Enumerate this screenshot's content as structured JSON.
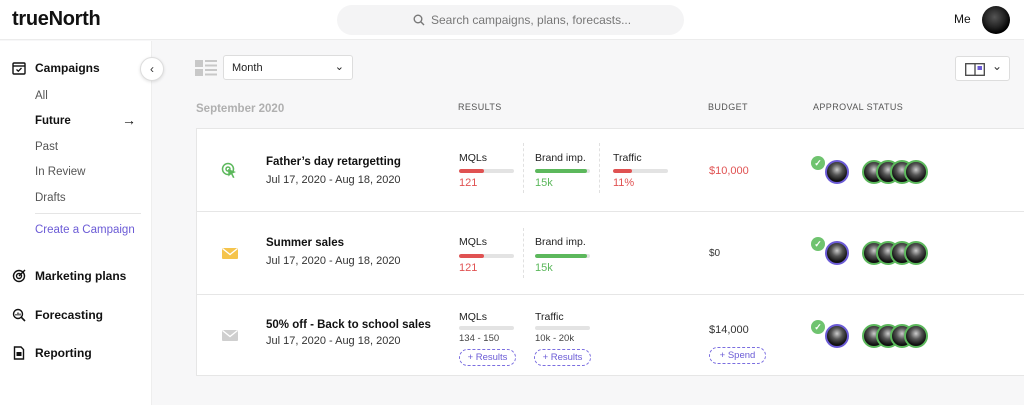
{
  "app": {
    "logo": "trueNorth",
    "user_label": "Me"
  },
  "search": {
    "placeholder": "Search campaigns, plans, forecasts..."
  },
  "sidebar": {
    "campaigns": "Campaigns",
    "sub_items": [
      "All",
      "Future",
      "Past",
      "In Review",
      "Drafts"
    ],
    "active_item": "Future",
    "create_link": "Create a Campaign",
    "marketing_plans": "Marketing plans",
    "forecasting": "Forecasting",
    "reporting": "Reporting"
  },
  "toolbar": {
    "period": "Month"
  },
  "table_headers": {
    "month": "September 2020",
    "results": "RESULTS",
    "budget": "BUDGET",
    "approval": "APPROVAL STATUS"
  },
  "colors": {
    "accent": "#6b5bd6",
    "red": "#e05252",
    "green": "#5cb85c",
    "muted": "#b0b0b0"
  },
  "campaigns": [
    {
      "icon": "cursor-click-icon",
      "name": "Father’s day retargetting",
      "dates": "Jul 17, 2020 - Aug 18, 2020",
      "metrics": [
        {
          "label": "MQLs",
          "value": "121",
          "fill": 0.45,
          "status": "red"
        },
        {
          "label": "Brand imp.",
          "value": "15k",
          "fill": 0.95,
          "status": "green"
        },
        {
          "label": "Traffic",
          "value": "11%",
          "fill": 0.35,
          "status": "red"
        }
      ],
      "budget": "$10,000",
      "budget_status": "red"
    },
    {
      "icon": "envelope-icon",
      "name": "Summer sales",
      "dates": "Jul 17, 2020 - Aug 18, 2020",
      "metrics": [
        {
          "label": "MQLs",
          "value": "121",
          "fill": 0.45,
          "status": "red"
        },
        {
          "label": "Brand imp.",
          "value": "15k",
          "fill": 0.95,
          "status": "green"
        }
      ],
      "budget": "$0",
      "budget_status": "neutral"
    },
    {
      "icon": "envelope-icon",
      "name": "50% off - Back to school sales",
      "dates": "Jul 17, 2020 - Aug 18, 2020",
      "metrics": [
        {
          "label": "MQLs",
          "range": "134 - 150",
          "action": "+ Results"
        },
        {
          "label": "Traffic",
          "range": "10k - 20k",
          "action": "+ Results"
        }
      ],
      "budget": "$14,000",
      "budget_status": "neutral",
      "budget_action": "+ Spend"
    }
  ]
}
